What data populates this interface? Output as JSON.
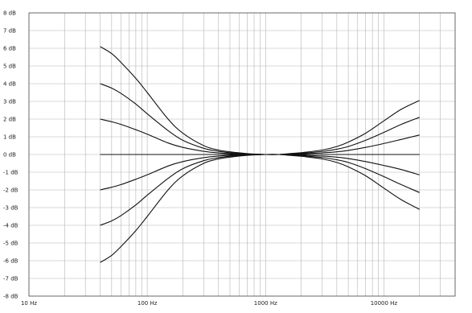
{
  "chart_data": {
    "type": "line",
    "title": "",
    "xlabel": "",
    "ylabel": "",
    "x_scale": "log",
    "xlim": [
      10,
      40000
    ],
    "ylim": [
      -8,
      8
    ],
    "grid": true,
    "legend": "none",
    "colors": {
      "line": "#111111",
      "grid": "#b4b4b4",
      "frame": "#444444",
      "background": "#ffffff"
    },
    "x_tick_labels": [
      {
        "value": 10,
        "label": "10 Hz"
      },
      {
        "value": 100,
        "label": "100 Hz"
      },
      {
        "value": 1000,
        "label": "1000 Hz"
      },
      {
        "value": 10000,
        "label": "10000 Hz"
      }
    ],
    "y_tick_labels": [
      {
        "value": 8,
        "label": "8 dB"
      },
      {
        "value": 7,
        "label": "7 dB"
      },
      {
        "value": 6,
        "label": "6 dB"
      },
      {
        "value": 5,
        "label": "5 dB"
      },
      {
        "value": 4,
        "label": "4 dB"
      },
      {
        "value": 3,
        "label": "3 dB"
      },
      {
        "value": 2,
        "label": "2 dB"
      },
      {
        "value": 1,
        "label": "1 dB"
      },
      {
        "value": 0,
        "label": "0 dB"
      },
      {
        "value": -1,
        "label": "-1 dB"
      },
      {
        "value": -2,
        "label": "-2 dB"
      },
      {
        "value": -3,
        "label": "-3 dB"
      },
      {
        "value": -4,
        "label": "-4 dB"
      },
      {
        "value": -5,
        "label": "-5 dB"
      },
      {
        "value": -6,
        "label": "-6 dB"
      },
      {
        "value": -7,
        "label": "-7 dB"
      },
      {
        "value": -8,
        "label": "-8 dB"
      }
    ],
    "x": [
      40,
      50,
      60,
      80,
      100,
      150,
      200,
      300,
      400,
      500,
      700,
      1000,
      1300,
      1600,
      2000,
      3000,
      4000,
      5000,
      7000,
      10000,
      14000,
      20000
    ],
    "series": [
      {
        "values": [
          6.1,
          5.7,
          5.2,
          4.3,
          3.5,
          2.0,
          1.2,
          0.5,
          0.25,
          0.15,
          0.05,
          0,
          0,
          0.05,
          0.1,
          0.25,
          0.45,
          0.7,
          1.2,
          1.9,
          2.55,
          3.05
        ]
      },
      {
        "values": [
          4.0,
          3.75,
          3.45,
          2.85,
          2.3,
          1.35,
          0.8,
          0.35,
          0.18,
          0.1,
          0.03,
          0,
          0,
          0.03,
          0.07,
          0.17,
          0.3,
          0.45,
          0.8,
          1.25,
          1.7,
          2.1
        ]
      },
      {
        "values": [
          2.0,
          1.85,
          1.7,
          1.4,
          1.15,
          0.65,
          0.4,
          0.18,
          0.09,
          0.05,
          0.02,
          0,
          0,
          0.02,
          0.04,
          0.09,
          0.15,
          0.23,
          0.4,
          0.62,
          0.85,
          1.1
        ]
      },
      {
        "values": [
          0,
          0,
          0,
          0,
          0,
          0,
          0,
          0,
          0,
          0,
          0,
          0,
          0,
          0,
          0,
          0,
          0,
          0,
          0,
          0,
          0,
          0
        ]
      },
      {
        "values": [
          -2.0,
          -1.85,
          -1.7,
          -1.4,
          -1.15,
          -0.65,
          -0.4,
          -0.18,
          -0.09,
          -0.05,
          -0.02,
          0,
          0,
          -0.02,
          -0.04,
          -0.09,
          -0.15,
          -0.23,
          -0.4,
          -0.62,
          -0.85,
          -1.15
        ]
      },
      {
        "values": [
          -4.0,
          -3.75,
          -3.45,
          -2.85,
          -2.3,
          -1.35,
          -0.8,
          -0.35,
          -0.18,
          -0.1,
          -0.03,
          0,
          0,
          -0.03,
          -0.07,
          -0.17,
          -0.3,
          -0.45,
          -0.8,
          -1.25,
          -1.7,
          -2.15
        ]
      },
      {
        "values": [
          -6.1,
          -5.7,
          -5.2,
          -4.3,
          -3.5,
          -2.0,
          -1.2,
          -0.5,
          -0.25,
          -0.15,
          -0.05,
          0,
          0,
          -0.05,
          -0.1,
          -0.25,
          -0.45,
          -0.7,
          -1.2,
          -1.9,
          -2.55,
          -3.1
        ]
      }
    ]
  }
}
